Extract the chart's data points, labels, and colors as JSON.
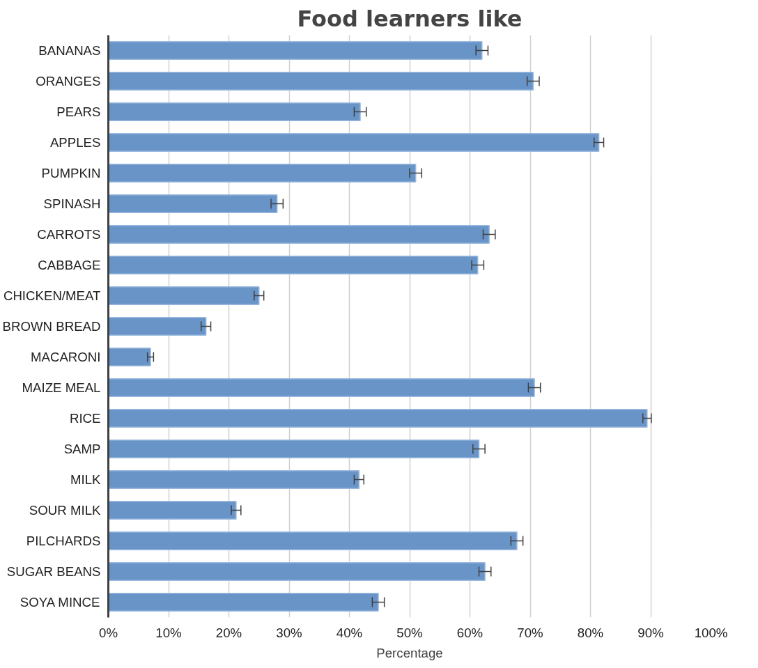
{
  "chart_data": {
    "type": "bar",
    "orientation": "horizontal",
    "title": "Food learners like",
    "xlabel": "Percentage",
    "categories": [
      "BANANAS",
      "ORANGES",
      "PEARS",
      "APPLES",
      "PUMPKIN",
      "SPINASH",
      "CARROTS",
      "CABBAGE",
      "CHICKEN/MEAT",
      "BROWN BREAD",
      "MACARONI",
      "MAIZE MEAL",
      "RICE",
      "SAMP",
      "MILK",
      "SOUR MILK",
      "PILCHARDS",
      "SUGAR BEANS",
      "SOYA MINCE"
    ],
    "series": [
      {
        "color": "#6894c8",
        "values": [
          62,
          70.5,
          41.8,
          81.4,
          51,
          28,
          63.2,
          61.3,
          25,
          16.2,
          7,
          70.7,
          89.4,
          61.5,
          41.6,
          21.2,
          67.8,
          62.5,
          44.8
        ],
        "errors": [
          1,
          1,
          1,
          0.8,
          1,
          1,
          1,
          1,
          0.8,
          0.8,
          0.5,
          1,
          0.7,
          1,
          0.8,
          0.8,
          1,
          1,
          1
        ]
      }
    ],
    "xlim": [
      0,
      100
    ],
    "xticks": [
      {
        "value": 0,
        "label": "0%"
      },
      {
        "value": 10,
        "label": "10%"
      },
      {
        "value": 20,
        "label": "20%"
      },
      {
        "value": 30,
        "label": "30%"
      },
      {
        "value": 40,
        "label": "40%"
      },
      {
        "value": 50,
        "label": "50%"
      },
      {
        "value": 60,
        "label": "60%"
      },
      {
        "value": 70,
        "label": "70%"
      },
      {
        "value": 80,
        "label": "80%"
      },
      {
        "value": 90,
        "label": "90%"
      },
      {
        "value": 100,
        "label": "100%"
      }
    ],
    "grid": "x"
  }
}
